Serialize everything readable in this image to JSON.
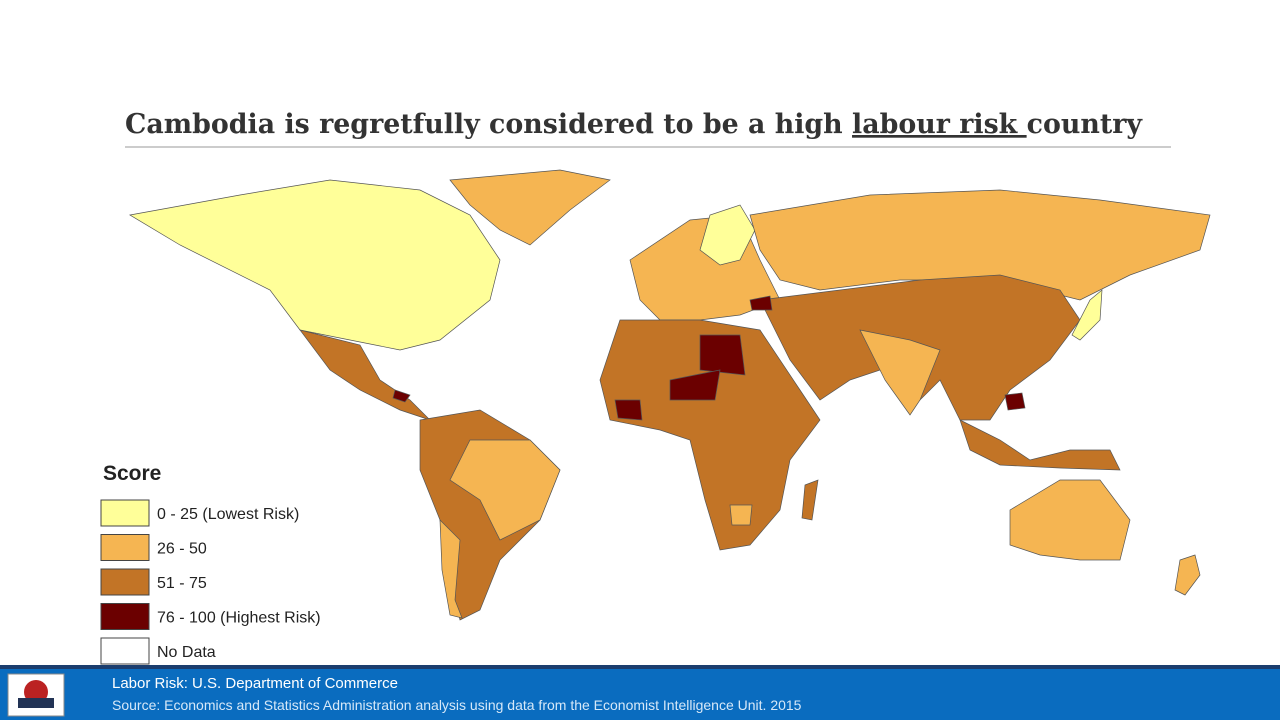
{
  "header": {
    "title_before": "Cambodia is regretfully considered to be a high ",
    "title_underlined": "labour risk ",
    "title_after": "country"
  },
  "legend": {
    "title": "Score",
    "items": [
      {
        "label": "0 - 25 (Lowest Risk)",
        "color": "#ffff99"
      },
      {
        "label": "26 - 50",
        "color": "#f5b552"
      },
      {
        "label": "51 - 75",
        "color": "#c27426"
      },
      {
        "label": "76 - 100 (Highest Risk)",
        "color": "#6b0000"
      },
      {
        "label": "No Data",
        "color": "#ffffff"
      }
    ]
  },
  "footer": {
    "source_title": "Labor Risk:  U.S. Department of Commerce",
    "source_text": "Source: Economics and Statistics Administration analysis using data from the Economist Intelligence Unit. 2015"
  }
}
